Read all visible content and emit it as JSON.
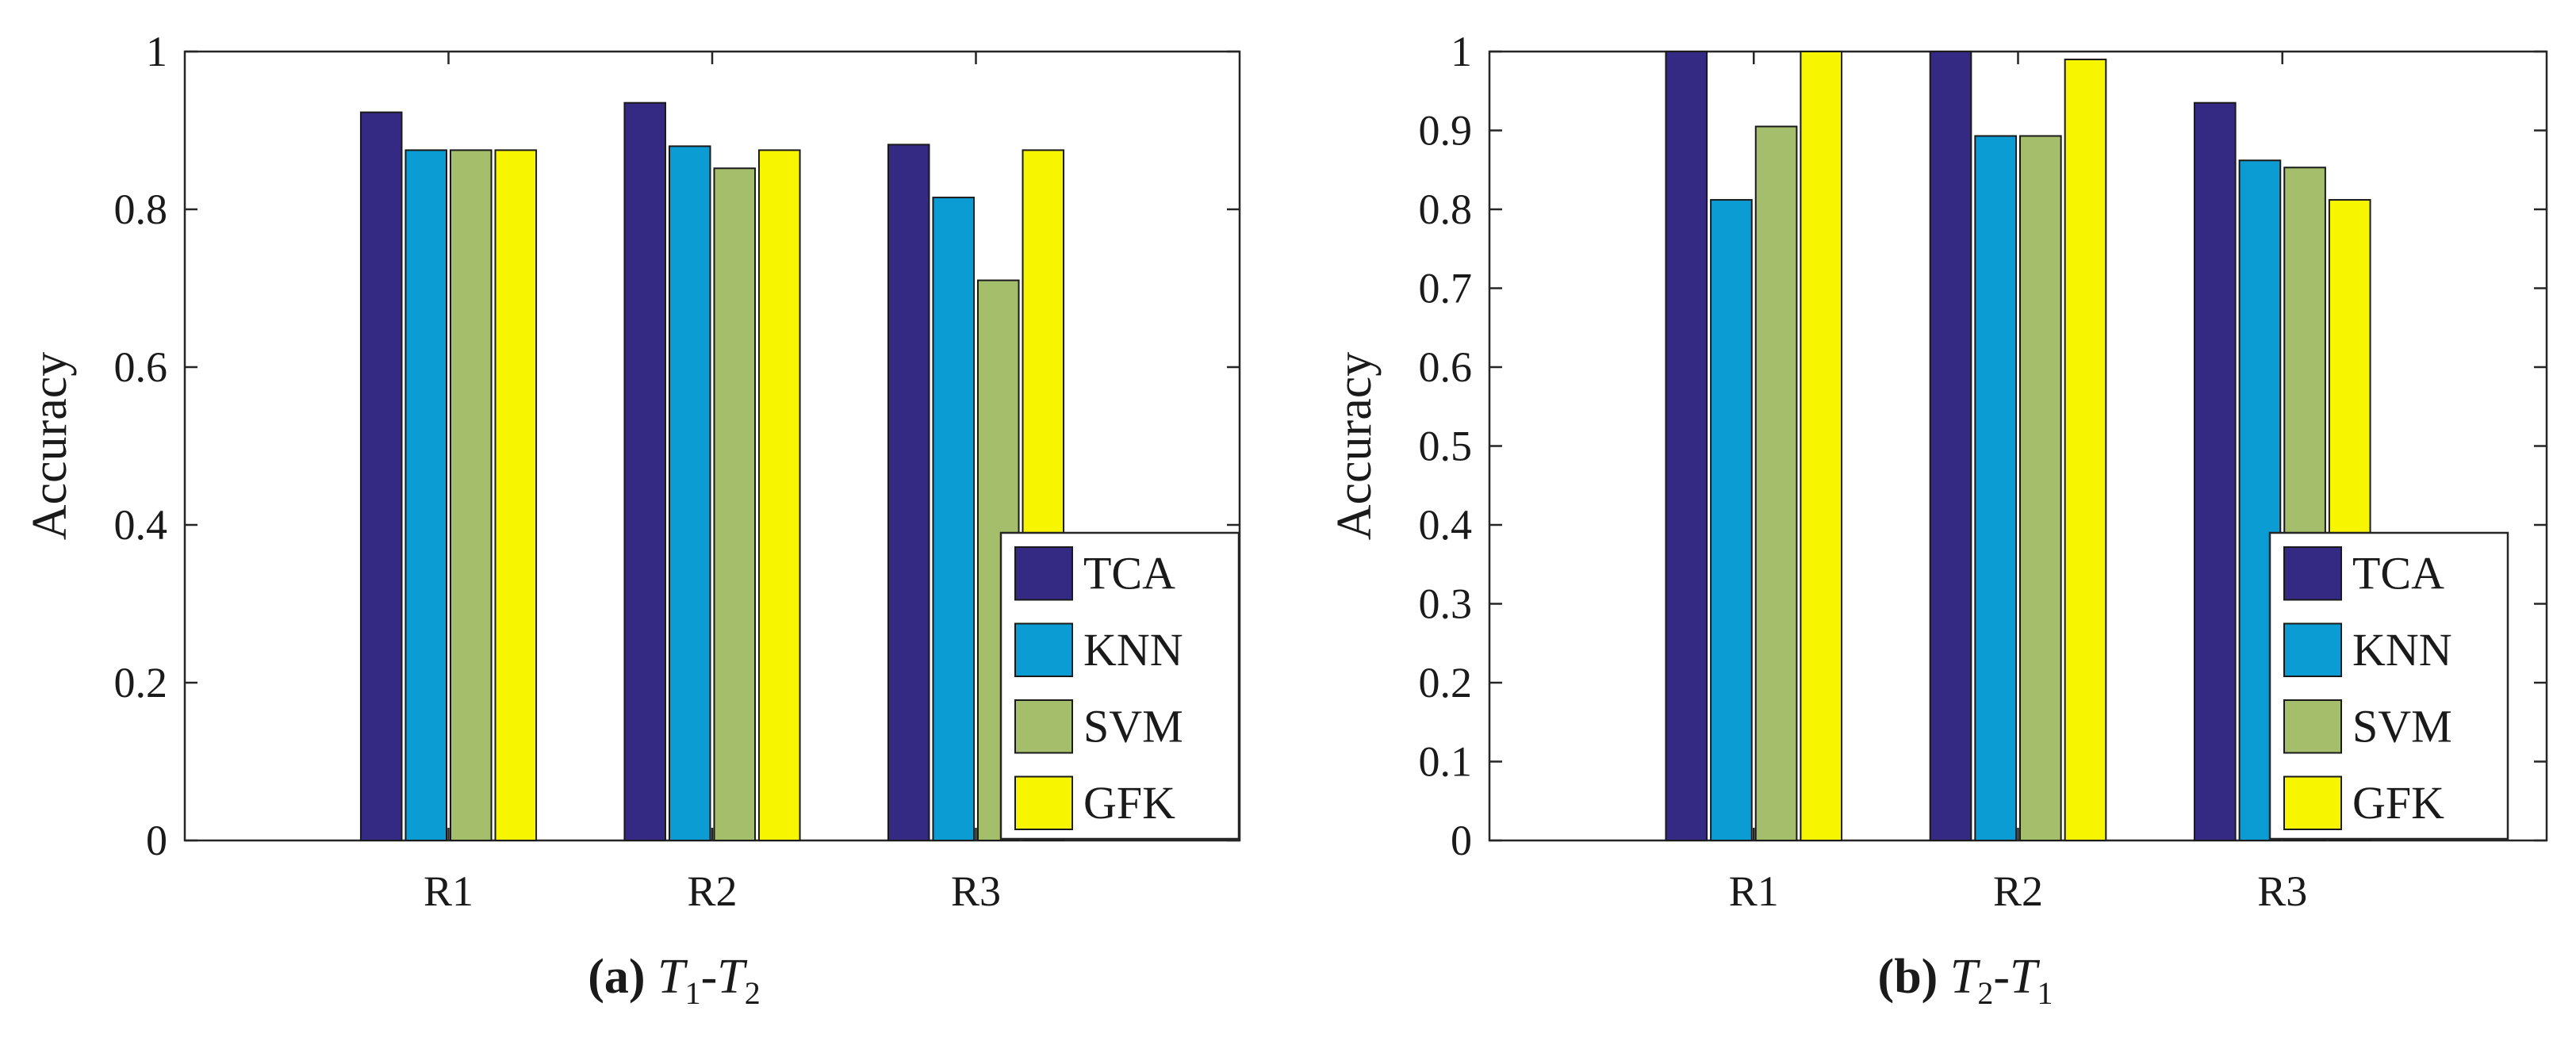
{
  "colors": {
    "TCA": "#342a83",
    "KNN": "#0c9cd4",
    "SVM": "#a4be6c",
    "GFK": "#f7f600"
  },
  "chart_data": [
    {
      "type": "bar",
      "panel": "a",
      "caption": {
        "tag": "(a)",
        "parts": [
          {
            "main": "T",
            "sub": "1"
          },
          {
            "sep": "-"
          },
          {
            "main": "T",
            "sub": "2"
          }
        ]
      },
      "ylabel": "Accuracy",
      "xlabel": "",
      "ylim": [
        0,
        1
      ],
      "yticks": [
        "0",
        "0.2",
        "0.4",
        "0.6",
        "0.8",
        "1"
      ],
      "ytick_values": [
        0,
        0.2,
        0.4,
        0.6,
        0.8,
        1
      ],
      "categories": [
        "R1",
        "R2",
        "R3"
      ],
      "legend_position": "bottom-right",
      "series": [
        {
          "name": "TCA",
          "values": [
            0.923,
            0.935,
            0.882
          ]
        },
        {
          "name": "KNN",
          "values": [
            0.875,
            0.88,
            0.815
          ]
        },
        {
          "name": "SVM",
          "values": [
            0.875,
            0.852,
            0.71
          ]
        },
        {
          "name": "GFK",
          "values": [
            0.875,
            0.875,
            0.875
          ]
        }
      ]
    },
    {
      "type": "bar",
      "panel": "b",
      "caption": {
        "tag": "(b)",
        "parts": [
          {
            "main": "T",
            "sub": "2"
          },
          {
            "sep": "-"
          },
          {
            "main": "T",
            "sub": "1"
          }
        ]
      },
      "ylabel": "Accuracy",
      "xlabel": "",
      "ylim": [
        0,
        1
      ],
      "yticks": [
        "0",
        "0.1",
        "0.2",
        "0.3",
        "0.4",
        "0.5",
        "0.6",
        "0.7",
        "0.8",
        "0.9",
        "1"
      ],
      "ytick_values": [
        0,
        0.1,
        0.2,
        0.3,
        0.4,
        0.5,
        0.6,
        0.7,
        0.8,
        0.9,
        1
      ],
      "categories": [
        "R1",
        "R2",
        "R3"
      ],
      "legend_position": "bottom-right",
      "series": [
        {
          "name": "TCA",
          "values": [
            1.0,
            1.0,
            0.935
          ]
        },
        {
          "name": "KNN",
          "values": [
            0.812,
            0.893,
            0.862
          ]
        },
        {
          "name": "SVM",
          "values": [
            0.905,
            0.893,
            0.853
          ]
        },
        {
          "name": "GFK",
          "values": [
            1.0,
            0.99,
            0.812
          ]
        }
      ]
    }
  ]
}
